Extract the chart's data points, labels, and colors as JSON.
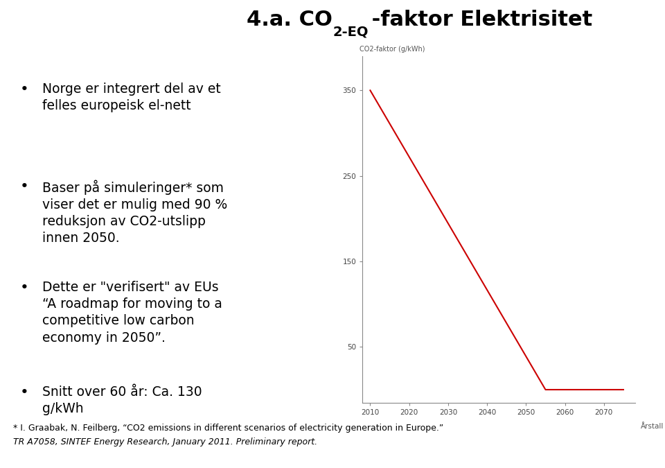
{
  "title_part1": "4.a. CO",
  "title_sub": "2-EQ",
  "title_part2": " -faktor Elektrisitet",
  "bullet_points": [
    "Norge er integrert del av et\nfelles europeisk el-nett",
    "Baser på simuleringer* som\nviser det er mulig med 90 %\nreduksjon av CO2-utslipp\ninnen 2050.",
    "Dette er \"verifisert\" av EUs\n“A roadmap for moving to a\ncompetitive low carbon\neconomy in 2050”.",
    "Snitt over 60 år: Ca. 130\ng/kWh"
  ],
  "footnote_line1": "* I. Graabak, N. Feilberg, “CO2 emissions in different scenarios of electricity generation in Europe.”",
  "footnote_line2": "TR A7058, SINTEF Energy Research, January 2011. Preliminary report.",
  "chart_ylabel": "CO2-faktor (g/kWh)",
  "chart_xlabel": "Årstall",
  "x_data": [
    2010,
    2055,
    2075
  ],
  "y_data": [
    350,
    0,
    0
  ],
  "line_color": "#cc0000",
  "x_ticks": [
    2010,
    2020,
    2030,
    2040,
    2050,
    2060,
    2070
  ],
  "y_ticks": [
    50,
    150,
    250,
    350
  ],
  "xlim": [
    2008,
    2078
  ],
  "ylim": [
    -15,
    390
  ],
  "background_color": "#ffffff"
}
